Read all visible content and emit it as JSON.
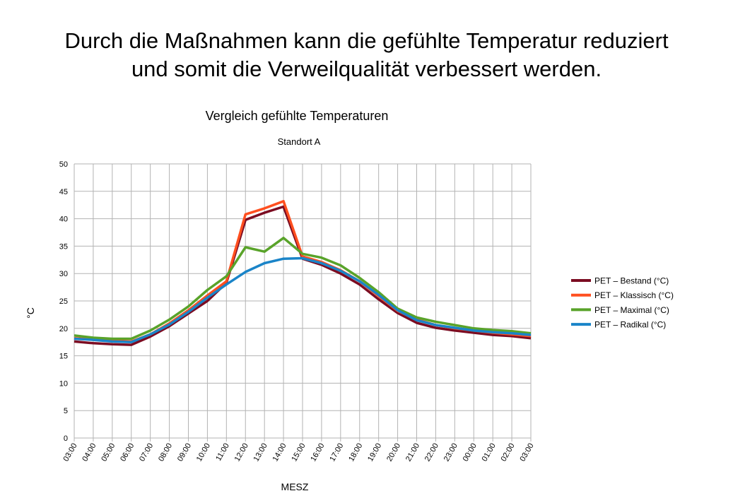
{
  "headline": {
    "line1": "Durch die Maßnahmen kann die gefühlte Temperatur reduziert",
    "line2": "und somit die Verweilqualität verbessert werden."
  },
  "chart_data": {
    "type": "line",
    "title": "Vergleich gefühlte Temperaturen",
    "subtitle": "Standort A",
    "xlabel": "MESZ",
    "ylabel": "°C",
    "ylim": [
      0,
      50
    ],
    "ytick_step": 5,
    "grid": true,
    "legend_position": "right",
    "categories": [
      "03:00",
      "04:00",
      "05:00",
      "06:00",
      "07:00",
      "08:00",
      "09:00",
      "10:00",
      "11:00",
      "12:00",
      "13:00",
      "14:00",
      "15:00",
      "16:00",
      "17:00",
      "18:00",
      "19:00",
      "20:00",
      "21:00",
      "22:00",
      "23:00",
      "00:00",
      "01:00",
      "02:00",
      "03:00"
    ],
    "series": [
      {
        "name": "PET – Bestand (°C)",
        "color": "#7b0c22",
        "values": [
          17.6,
          17.3,
          17.1,
          17.0,
          18.5,
          20.4,
          22.7,
          25.0,
          28.3,
          39.8,
          41.1,
          42.2,
          32.7,
          31.6,
          30.0,
          28.0,
          25.3,
          22.8,
          21.0,
          20.1,
          19.6,
          19.2,
          18.8,
          18.6,
          18.2
        ]
      },
      {
        "name": "PET – Klassisch (°C)",
        "color": "#ff4f1f",
        "values": [
          18.2,
          18.0,
          17.8,
          17.6,
          18.9,
          20.9,
          23.3,
          26.0,
          28.6,
          40.8,
          41.9,
          43.2,
          33.1,
          32.1,
          30.6,
          28.6,
          25.9,
          23.2,
          21.6,
          20.6,
          20.0,
          19.6,
          19.2,
          18.9,
          18.6
        ]
      },
      {
        "name": "PET – Maximal  (°C)",
        "color": "#59a32a",
        "values": [
          18.7,
          18.3,
          18.1,
          18.1,
          19.6,
          21.6,
          24.0,
          27.0,
          29.5,
          34.8,
          34.0,
          36.5,
          33.6,
          32.9,
          31.5,
          29.2,
          26.6,
          23.6,
          22.0,
          21.2,
          20.6,
          20.0,
          19.7,
          19.5,
          19.1
        ]
      },
      {
        "name": "PET – Radikal  (°C)",
        "color": "#1a84c8",
        "values": [
          18.1,
          17.9,
          17.6,
          17.5,
          18.9,
          20.7,
          23.0,
          25.6,
          28.0,
          30.3,
          31.9,
          32.7,
          32.8,
          31.9,
          30.5,
          28.6,
          26.1,
          23.3,
          21.5,
          20.6,
          20.1,
          19.6,
          19.3,
          19.1,
          18.8
        ]
      }
    ]
  }
}
